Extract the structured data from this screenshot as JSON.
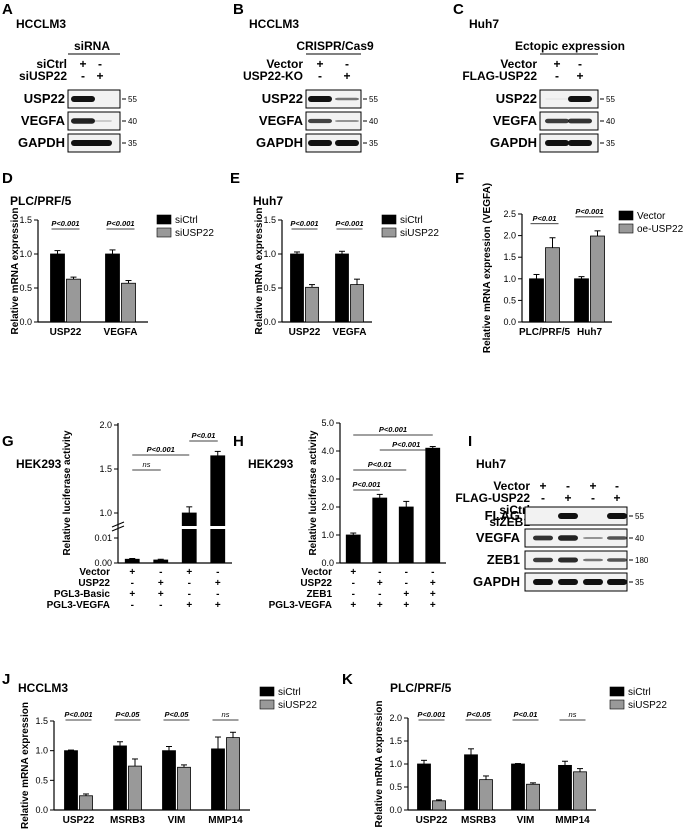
{
  "panels": {
    "A": {
      "letter": "A",
      "cell": "HCCLM3",
      "method": "siRNA",
      "rows": [
        {
          "label": "siCtrl",
          "marks": [
            "+",
            "-"
          ]
        },
        {
          "label": "siUSP22",
          "marks": [
            "-",
            "+"
          ]
        }
      ],
      "bands": [
        "USP22",
        "VEGFA",
        "GAPDH"
      ],
      "mw": [
        "55",
        "40",
        "35"
      ]
    },
    "B": {
      "letter": "B",
      "cell": "HCCLM3",
      "method": "CRISPR/Cas9",
      "rows": [
        {
          "label": "Vector",
          "marks": [
            "+",
            "-"
          ]
        },
        {
          "label": "USP22-KO",
          "marks": [
            "-",
            "+"
          ]
        }
      ],
      "bands": [
        "USP22",
        "VEGFA",
        "GAPDH"
      ],
      "mw": [
        "55",
        "40",
        "35"
      ]
    },
    "C": {
      "letter": "C",
      "cell": "Huh7",
      "method": "Ectopic expression",
      "rows": [
        {
          "label": "Vector",
          "marks": [
            "+",
            "-"
          ]
        },
        {
          "label": "FLAG-USP22",
          "marks": [
            "-",
            "+"
          ]
        }
      ],
      "bands": [
        "USP22",
        "VEGFA",
        "GAPDH"
      ],
      "mw": [
        "55",
        "40",
        "35"
      ]
    },
    "I": {
      "letter": "I",
      "cell": "Huh7",
      "rows": [
        {
          "label": "Vector",
          "marks": [
            "+",
            "-",
            "+",
            "-"
          ]
        },
        {
          "label": "FLAG-USP22",
          "marks": [
            "-",
            "+",
            "-",
            "+"
          ]
        },
        {
          "label": "siCtrl",
          "marks": [
            "+",
            "+",
            "-",
            "-"
          ]
        },
        {
          "label": "siZEB1",
          "marks": [
            "-",
            "-",
            "+",
            "+"
          ]
        }
      ],
      "bands": [
        "FLAG",
        "VEGFA",
        "ZEB1",
        "GAPDH"
      ],
      "mw": [
        "55",
        "40",
        "180",
        "35"
      ]
    }
  },
  "chart_data": [
    {
      "id": "D",
      "letter": "D",
      "title": "PLC/PRF/5",
      "type": "bar",
      "ylabel": "Relative mRNA expression",
      "ylim": [
        0,
        1.5
      ],
      "yticks": [
        "0.0",
        "0.5",
        "1.0",
        "1.5"
      ],
      "categories": [
        "USP22",
        "VEGFA"
      ],
      "series": [
        {
          "name": "siCtrl",
          "color": "#000000",
          "values": [
            1.0,
            1.0
          ],
          "err": [
            0.05,
            0.06
          ]
        },
        {
          "name": "siUSP22",
          "color": "#999999",
          "values": [
            0.63,
            0.57
          ],
          "err": [
            0.03,
            0.04
          ]
        }
      ],
      "pvalues": [
        "P<0.001",
        "P<0.001"
      ],
      "legend": "top-right"
    },
    {
      "id": "E",
      "letter": "E",
      "title": "Huh7",
      "type": "bar",
      "ylabel": "Relative mRNA expression",
      "ylim": [
        0,
        1.5
      ],
      "yticks": [
        "0.0",
        "0.5",
        "1.0",
        "1.5"
      ],
      "categories": [
        "USP22",
        "VEGFA"
      ],
      "series": [
        {
          "name": "siCtrl",
          "color": "#000000",
          "values": [
            1.0,
            1.0
          ],
          "err": [
            0.03,
            0.04
          ]
        },
        {
          "name": "siUSP22",
          "color": "#999999",
          "values": [
            0.51,
            0.55
          ],
          "err": [
            0.04,
            0.08
          ]
        }
      ],
      "pvalues": [
        "P<0.001",
        "P<0.001"
      ],
      "legend": "top-right"
    },
    {
      "id": "F",
      "letter": "F",
      "title": "",
      "type": "bar",
      "ylabel": "Relative mRNA expression (VEGFA)",
      "ylim": [
        0,
        2.5
      ],
      "yticks": [
        "0.0",
        "0.5",
        "1.0",
        "1.5",
        "2.0",
        "2.5"
      ],
      "categories": [
        "PLC/PRF/5",
        "Huh7"
      ],
      "series": [
        {
          "name": "Vector",
          "color": "#000000",
          "values": [
            1.0,
            1.0
          ],
          "err": [
            0.1,
            0.05
          ]
        },
        {
          "name": "oe-USP22",
          "color": "#999999",
          "values": [
            1.72,
            1.99
          ],
          "err": [
            0.23,
            0.12
          ]
        }
      ],
      "pvalues": [
        "P<0.01",
        "P<0.001"
      ],
      "legend": "top-right"
    },
    {
      "id": "G",
      "letter": "G",
      "title": "HEK293",
      "type": "bar",
      "ylabel": "Relative luciferase activity",
      "ylim": [
        0,
        2
      ],
      "yticks": [
        "0.00",
        "0.01",
        "1.0",
        "1.5",
        "2.0"
      ],
      "conditions": [
        {
          "label": "Vector",
          "marks": [
            "+",
            "-",
            "+",
            "-"
          ]
        },
        {
          "label": "USP22",
          "marks": [
            "-",
            "+",
            "-",
            "+"
          ]
        },
        {
          "label": "PGL3-Basic",
          "marks": [
            "+",
            "+",
            "-",
            "-"
          ]
        },
        {
          "label": "PGL3-VEGFA",
          "marks": [
            "-",
            "-",
            "+",
            "+"
          ]
        }
      ],
      "values": [
        0.0015,
        0.0012,
        1.0,
        1.65
      ],
      "err": [
        0.0003,
        0.0003,
        0.07,
        0.05
      ],
      "pvalues": [
        {
          "text": "ns",
          "from": 0,
          "to": 1
        },
        {
          "text": "P<0.001",
          "from": 0,
          "to": 2
        },
        {
          "text": "P<0.01",
          "from": 2,
          "to": 3
        }
      ]
    },
    {
      "id": "H",
      "letter": "H",
      "title": "HEK293",
      "type": "bar",
      "ylabel": "Relative luciferase activity",
      "ylim": [
        0,
        5
      ],
      "yticks": [
        "0.0",
        "1.0",
        "2.0",
        "3.0",
        "4.0",
        "5.0"
      ],
      "conditions": [
        {
          "label": "Vector",
          "marks": [
            "+",
            "-",
            "-",
            "-"
          ]
        },
        {
          "label": "USP22",
          "marks": [
            "-",
            "+",
            "-",
            "+"
          ]
        },
        {
          "label": "ZEB1",
          "marks": [
            "-",
            "-",
            "+",
            "+"
          ]
        },
        {
          "label": "PGL3-VEGFA",
          "marks": [
            "+",
            "+",
            "+",
            "+"
          ]
        }
      ],
      "values": [
        1.0,
        2.32,
        2.0,
        4.1
      ],
      "err": [
        0.07,
        0.13,
        0.2,
        0.06
      ],
      "pvalues": [
        {
          "text": "P<0.001",
          "from": 0,
          "to": 1
        },
        {
          "text": "P<0.01",
          "from": 0,
          "to": 2
        },
        {
          "text": "P<0.001",
          "from": 1,
          "to": 3
        },
        {
          "text": "P<0.001",
          "from": 0,
          "to": 3
        }
      ]
    },
    {
      "id": "J",
      "letter": "J",
      "title": "HCCLM3",
      "type": "bar",
      "ylabel": "Relative mRNA expression",
      "ylim": [
        0,
        1.5
      ],
      "yticks": [
        "0.0",
        "0.5",
        "1.0",
        "1.5"
      ],
      "categories": [
        "USP22",
        "MSRB3",
        "VIM",
        "MMP14"
      ],
      "series": [
        {
          "name": "siCtrl",
          "color": "#000000",
          "values": [
            1.0,
            1.08,
            1.0,
            1.03
          ],
          "err": [
            0.01,
            0.07,
            0.07,
            0.2
          ]
        },
        {
          "name": "siUSP22",
          "color": "#999999",
          "values": [
            0.24,
            0.74,
            0.72,
            1.22
          ],
          "err": [
            0.03,
            0.12,
            0.04,
            0.09
          ]
        }
      ],
      "pvalues": [
        "P<0.001",
        "P<0.05",
        "P<0.05",
        "ns"
      ],
      "legend": "top-right"
    },
    {
      "id": "K",
      "letter": "K",
      "title": "PLC/PRF/5",
      "type": "bar",
      "ylabel": "Relative mRNA expression",
      "ylim": [
        0,
        2.0
      ],
      "yticks": [
        "0.0",
        "0.5",
        "1.0",
        "1.5",
        "2.0"
      ],
      "categories": [
        "USP22",
        "MSRB3",
        "VIM",
        "MMP14"
      ],
      "series": [
        {
          "name": "siCtrl",
          "color": "#000000",
          "values": [
            1.0,
            1.2,
            1.0,
            0.97
          ],
          "err": [
            0.08,
            0.13,
            0.01,
            0.09
          ]
        },
        {
          "name": "siUSP22",
          "color": "#999999",
          "values": [
            0.2,
            0.66,
            0.56,
            0.83
          ],
          "err": [
            0.02,
            0.08,
            0.03,
            0.07
          ]
        }
      ],
      "pvalues": [
        "P<0.001",
        "P<0.05",
        "P<0.01",
        "ns"
      ],
      "legend": "top-right"
    }
  ]
}
